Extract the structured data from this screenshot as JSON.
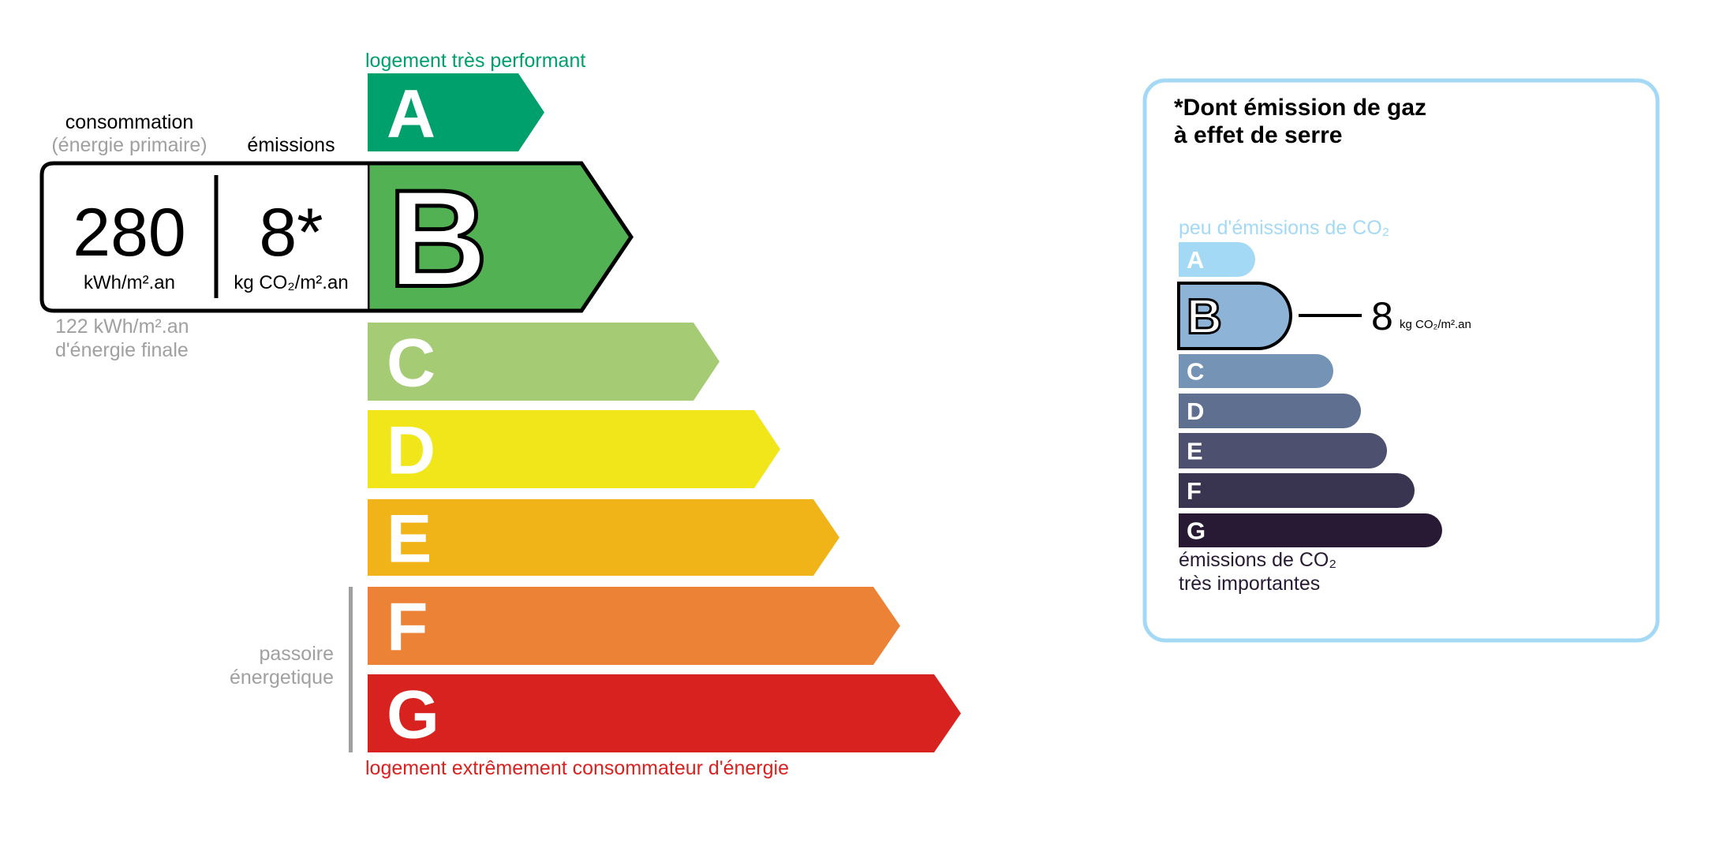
{
  "energy": {
    "top_label": "logement très performant",
    "bottom_label": "logement extrêmement consommateur d'énergie",
    "consumption_label": "consommation",
    "consumption_sublabel": "(énergie primaire)",
    "emissions_label": "émissions",
    "consumption_value": "280",
    "consumption_unit": "kWh/m².an",
    "emissions_value": "8*",
    "emissions_unit": "kg CO₂/m².an",
    "final_energy_line1": "122 kWh/m².an",
    "final_energy_line2": "d'énergie finale",
    "passoire_line1": "passoire",
    "passoire_line2": "énergetique",
    "current_class": "B",
    "classes": [
      {
        "letter": "A",
        "color": "#00a06d"
      },
      {
        "letter": "B",
        "color": "#52b153"
      },
      {
        "letter": "C",
        "color": "#a5cc74"
      },
      {
        "letter": "D",
        "color": "#f0e619"
      },
      {
        "letter": "E",
        "color": "#f0b418"
      },
      {
        "letter": "F",
        "color": "#ec8235"
      },
      {
        "letter": "G",
        "color": "#d7221f"
      }
    ],
    "colors": {
      "top_label": "#00a06d",
      "bottom_label": "#d7221f",
      "muted": "#a0a0a0"
    }
  },
  "ges": {
    "title_line1": "*Dont émission de gaz",
    "title_line2": "à effet de serre",
    "top_label": "peu d'émissions de CO₂",
    "bottom_line1": "émissions de CO₂",
    "bottom_line2": "très importantes",
    "value": "8",
    "unit": "kg CO₂/m².an",
    "current_class": "B",
    "classes": [
      {
        "letter": "A",
        "color": "#a3d9f5"
      },
      {
        "letter": "B",
        "color": "#8db4d6"
      },
      {
        "letter": "C",
        "color": "#7593b5"
      },
      {
        "letter": "D",
        "color": "#5f6f90"
      },
      {
        "letter": "E",
        "color": "#4d506e"
      },
      {
        "letter": "F",
        "color": "#393551"
      },
      {
        "letter": "G",
        "color": "#281a34"
      }
    ],
    "colors": {
      "border": "#a3d9f5",
      "top_label": "#a3d9f5",
      "text": "#281a34"
    }
  }
}
